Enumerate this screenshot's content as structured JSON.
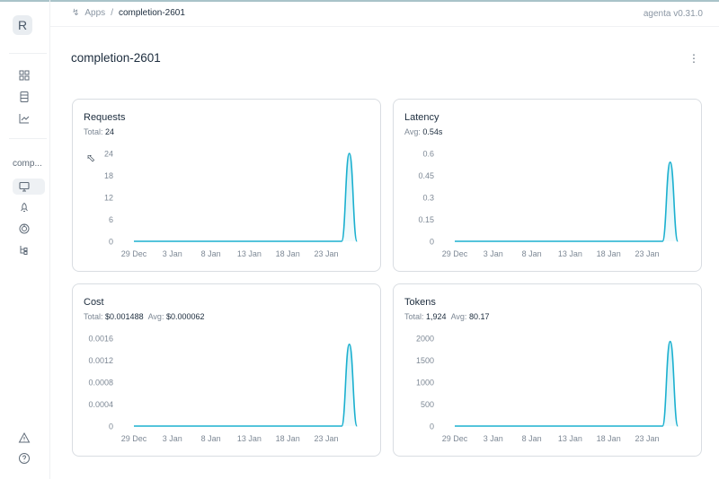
{
  "sidebar": {
    "logo": "R",
    "app_label": "comp...",
    "icons": [
      "grid-icon",
      "table-icon",
      "chart-icon",
      "monitor-icon",
      "rocket-icon",
      "evaluation-icon",
      "tree-icon",
      "alert-icon",
      "help-icon"
    ]
  },
  "header": {
    "breadcrumb": [
      "Apps",
      "completion-2601"
    ],
    "version": "agenta v0.31.0"
  },
  "page": {
    "title": "completion-2601"
  },
  "colors": {
    "line": "#1bb0cf",
    "fill": "#c9eef6"
  },
  "panels": [
    {
      "title": "Requests",
      "stats": [
        {
          "label": "Total:",
          "value": "24"
        }
      ]
    },
    {
      "title": "Latency",
      "stats": [
        {
          "label": "Avg:",
          "value": "0.54s"
        }
      ]
    },
    {
      "title": "Cost",
      "stats": [
        {
          "label": "Total:",
          "value": "$0.001488"
        },
        {
          "label": "Avg:",
          "value": "$0.000062"
        }
      ]
    },
    {
      "title": "Tokens",
      "stats": [
        {
          "label": "Total:",
          "value": "1,924"
        },
        {
          "label": "Avg:",
          "value": "80.17"
        }
      ]
    }
  ],
  "chart_data": [
    {
      "type": "area",
      "title": "Requests",
      "x": [
        "29 Dec",
        "30 Dec",
        "31 Dec",
        "1 Jan",
        "2 Jan",
        "3 Jan",
        "4 Jan",
        "5 Jan",
        "6 Jan",
        "7 Jan",
        "8 Jan",
        "9 Jan",
        "10 Jan",
        "11 Jan",
        "12 Jan",
        "13 Jan",
        "14 Jan",
        "15 Jan",
        "16 Jan",
        "17 Jan",
        "18 Jan",
        "19 Jan",
        "20 Jan",
        "21 Jan",
        "22 Jan",
        "23 Jan",
        "24 Jan",
        "25 Jan",
        "26 Jan",
        "27 Jan"
      ],
      "values": [
        0,
        0,
        0,
        0,
        0,
        0,
        0,
        0,
        0,
        0,
        0,
        0,
        0,
        0,
        0,
        0,
        0,
        0,
        0,
        0,
        0,
        0,
        0,
        0,
        0,
        0,
        0,
        0,
        24,
        0
      ],
      "xticks": [
        "29 Dec",
        "3 Jan",
        "8 Jan",
        "13 Jan",
        "18 Jan",
        "23 Jan"
      ],
      "yticks": [
        "0",
        "6",
        "12",
        "18",
        "24"
      ],
      "ylim": [
        0,
        24
      ]
    },
    {
      "type": "area",
      "title": "Latency",
      "x": [
        "29 Dec",
        "30 Dec",
        "31 Dec",
        "1 Jan",
        "2 Jan",
        "3 Jan",
        "4 Jan",
        "5 Jan",
        "6 Jan",
        "7 Jan",
        "8 Jan",
        "9 Jan",
        "10 Jan",
        "11 Jan",
        "12 Jan",
        "13 Jan",
        "14 Jan",
        "15 Jan",
        "16 Jan",
        "17 Jan",
        "18 Jan",
        "19 Jan",
        "20 Jan",
        "21 Jan",
        "22 Jan",
        "23 Jan",
        "24 Jan",
        "25 Jan",
        "26 Jan",
        "27 Jan"
      ],
      "values": [
        0,
        0,
        0,
        0,
        0,
        0,
        0,
        0,
        0,
        0,
        0,
        0,
        0,
        0,
        0,
        0,
        0,
        0,
        0,
        0,
        0,
        0,
        0,
        0,
        0,
        0,
        0,
        0,
        0.54,
        0
      ],
      "xticks": [
        "29 Dec",
        "3 Jan",
        "8 Jan",
        "13 Jan",
        "18 Jan",
        "23 Jan"
      ],
      "yticks": [
        "0",
        "0.15",
        "0.3",
        "0.45",
        "0.6"
      ],
      "ylim": [
        0,
        0.6
      ]
    },
    {
      "type": "area",
      "title": "Cost",
      "x": [
        "29 Dec",
        "30 Dec",
        "31 Dec",
        "1 Jan",
        "2 Jan",
        "3 Jan",
        "4 Jan",
        "5 Jan",
        "6 Jan",
        "7 Jan",
        "8 Jan",
        "9 Jan",
        "10 Jan",
        "11 Jan",
        "12 Jan",
        "13 Jan",
        "14 Jan",
        "15 Jan",
        "16 Jan",
        "17 Jan",
        "18 Jan",
        "19 Jan",
        "20 Jan",
        "21 Jan",
        "22 Jan",
        "23 Jan",
        "24 Jan",
        "25 Jan",
        "26 Jan",
        "27 Jan"
      ],
      "values": [
        0,
        0,
        0,
        0,
        0,
        0,
        0,
        0,
        0,
        0,
        0,
        0,
        0,
        0,
        0,
        0,
        0,
        0,
        0,
        0,
        0,
        0,
        0,
        0,
        0,
        0,
        0,
        0,
        0.001488,
        0
      ],
      "xticks": [
        "29 Dec",
        "3 Jan",
        "8 Jan",
        "13 Jan",
        "18 Jan",
        "23 Jan"
      ],
      "yticks": [
        "0",
        "0.0004",
        "0.0008",
        "0.0012",
        "0.0016"
      ],
      "ylim": [
        0,
        0.0016
      ]
    },
    {
      "type": "area",
      "title": "Tokens",
      "x": [
        "29 Dec",
        "30 Dec",
        "31 Dec",
        "1 Jan",
        "2 Jan",
        "3 Jan",
        "4 Jan",
        "5 Jan",
        "6 Jan",
        "7 Jan",
        "8 Jan",
        "9 Jan",
        "10 Jan",
        "11 Jan",
        "12 Jan",
        "13 Jan",
        "14 Jan",
        "15 Jan",
        "16 Jan",
        "17 Jan",
        "18 Jan",
        "19 Jan",
        "20 Jan",
        "21 Jan",
        "22 Jan",
        "23 Jan",
        "24 Jan",
        "25 Jan",
        "26 Jan",
        "27 Jan"
      ],
      "values": [
        0,
        0,
        0,
        0,
        0,
        0,
        0,
        0,
        0,
        0,
        0,
        0,
        0,
        0,
        0,
        0,
        0,
        0,
        0,
        0,
        0,
        0,
        0,
        0,
        0,
        0,
        0,
        0,
        1924,
        0
      ],
      "xticks": [
        "29 Dec",
        "3 Jan",
        "8 Jan",
        "13 Jan",
        "18 Jan",
        "23 Jan"
      ],
      "yticks": [
        "0",
        "500",
        "1000",
        "1500",
        "2000"
      ],
      "ylim": [
        0,
        2000
      ]
    }
  ]
}
